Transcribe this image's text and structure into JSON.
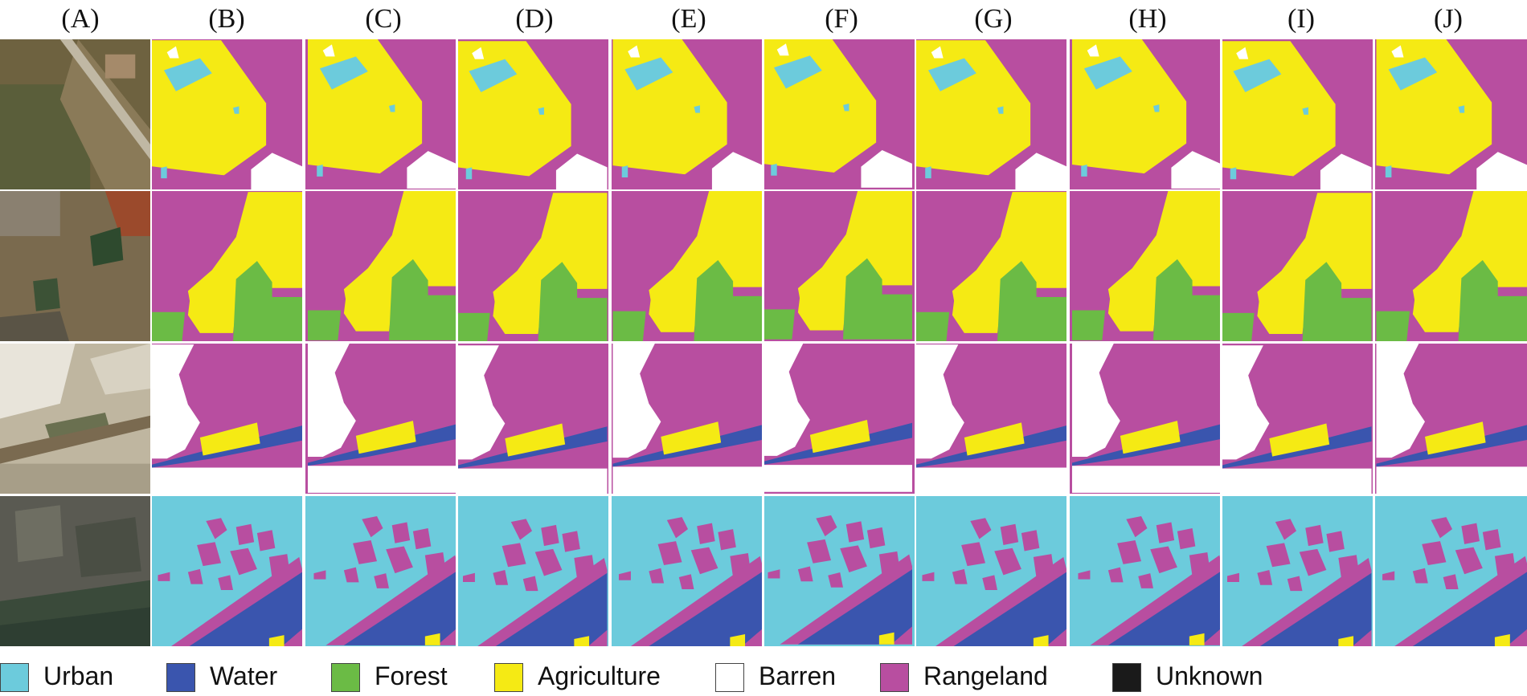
{
  "figure": {
    "columns": [
      "(A)",
      "(B)",
      "(C)",
      "(D)",
      "(E)",
      "(F)",
      "(G)",
      "(H)",
      "(I)",
      "(J)"
    ]
  },
  "legend": [
    {
      "label": "Urban",
      "color": "#6ccbdc"
    },
    {
      "label": "Water",
      "color": "#3a55ae"
    },
    {
      "label": "Forest",
      "color": "#6bbb45"
    },
    {
      "label": "Agriculture",
      "color": "#f5ea14"
    },
    {
      "label": "Barren",
      "color": "#ffffff"
    },
    {
      "label": "Rangeland",
      "color": "#b84ea0"
    },
    {
      "label": "Unknown",
      "color": "#1a1a1a"
    }
  ],
  "colors": {
    "urban": "#6ccbdc",
    "water": "#3a55ae",
    "forest": "#6bbb45",
    "agriculture": "#f5ea14",
    "barren": "#ffffff",
    "rangeland": "#b84ea0",
    "unknown": "#1a1a1a"
  }
}
